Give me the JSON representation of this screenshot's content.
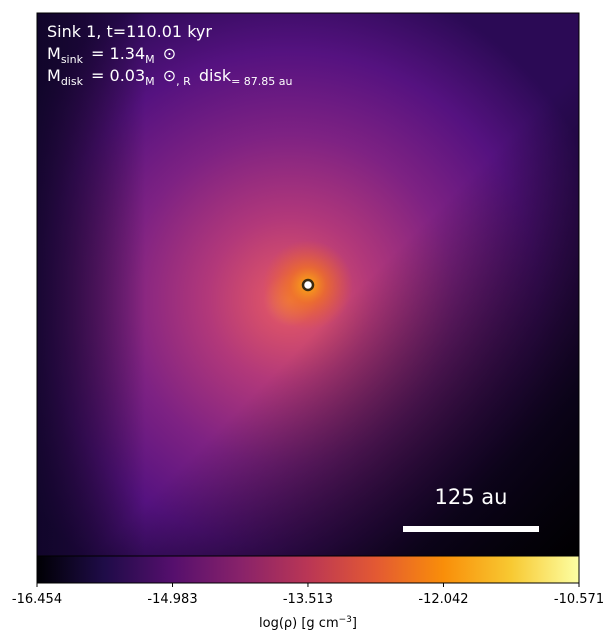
{
  "chart_data": {
    "type": "image",
    "annotation_lines": [
      [
        "Sink 1, t=110.01 kyr"
      ],
      [
        "M",
        "sink",
        "= 1.34",
        "M",
        "⊙"
      ],
      [
        "M",
        "disk",
        "= 0.03",
        "M",
        "⊙",
        ", R",
        "disk",
        "= 87.85 au"
      ]
    ],
    "scalebar_label": "125 au",
    "colorbar": {
      "label": [
        "log(ρ) [g cm",
        "−3",
        "]"
      ],
      "xlim": [
        -16.454,
        -10.571
      ],
      "xticks": [
        -16.454,
        -14.983,
        -13.513,
        -12.042,
        -10.571
      ],
      "colormap": "inferno"
    }
  }
}
